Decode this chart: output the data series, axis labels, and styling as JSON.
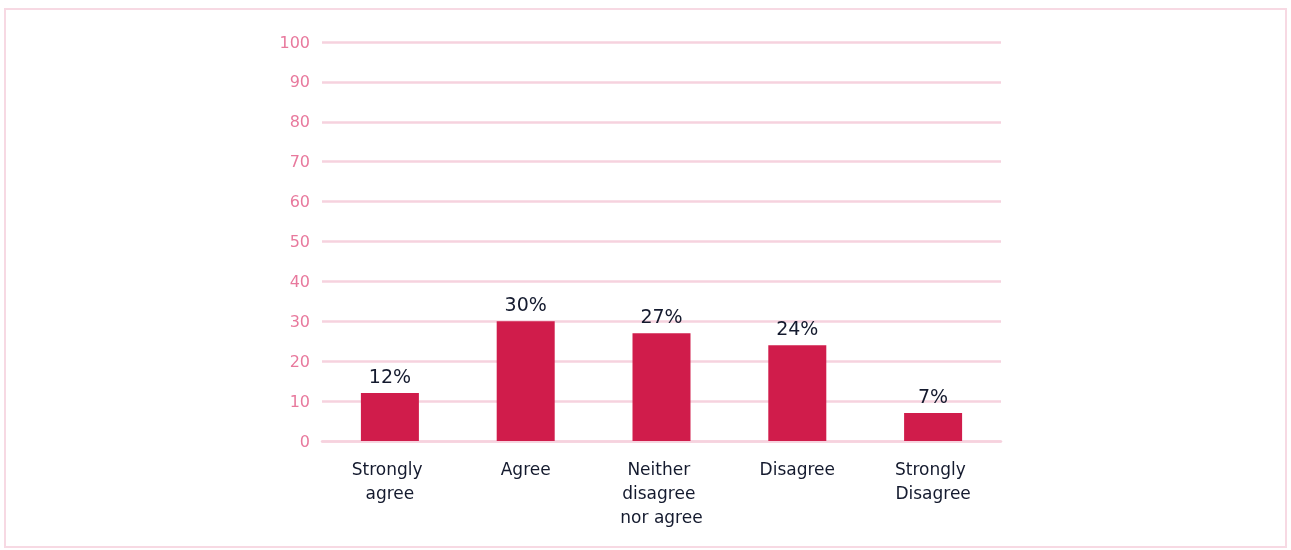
{
  "chart_data": {
    "type": "bar",
    "categories": [
      "Strongly agree",
      "Agree",
      "Neither disagree nor agree",
      "Disagree",
      "Strongly Disagree"
    ],
    "values": [
      12,
      30,
      27,
      24,
      7
    ],
    "color": "#d01c4b",
    "value_labels": [
      "12%",
      "30%",
      "27%",
      "24%",
      "7%"
    ],
    "ylim": [
      0,
      100
    ],
    "yticks": [
      0,
      10,
      20,
      30,
      40,
      50,
      60,
      70,
      80,
      90,
      100
    ],
    "grid": "y"
  }
}
